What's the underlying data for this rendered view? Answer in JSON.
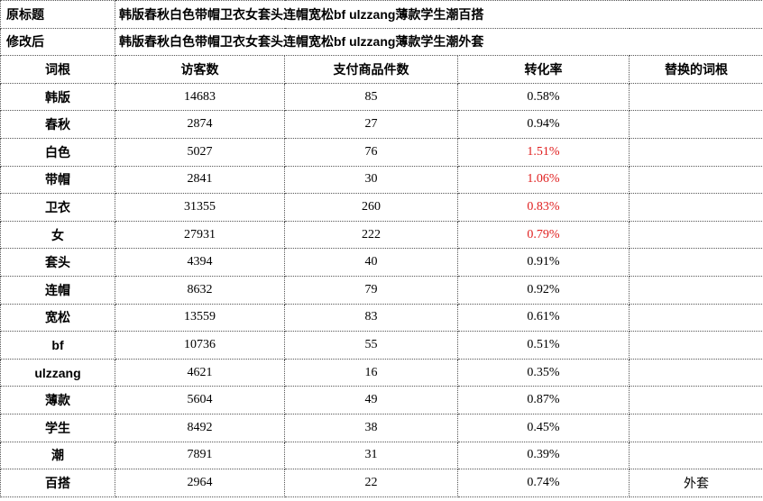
{
  "header": {
    "original_title_label": "原标题",
    "original_title_value": "韩版春秋白色带帽卫衣女套头连帽宽松bf ulzzang薄款学生潮百搭",
    "modified_title_label": "修改后",
    "modified_title_value": "韩版春秋白色带帽卫衣女套头连帽宽松bf ulzzang薄款学生潮外套"
  },
  "columns": {
    "root": "词根",
    "visitors": "访客数",
    "items_paid": "支付商品件数",
    "conversion": "转化率",
    "replaced_root": "替换的词根"
  },
  "highlight_color": "#e02020",
  "rows": [
    {
      "root": "韩版",
      "visitors": "14683",
      "items_paid": "85",
      "conversion": "0.58%",
      "highlight": false,
      "replaced": ""
    },
    {
      "root": "春秋",
      "visitors": "2874",
      "items_paid": "27",
      "conversion": "0.94%",
      "highlight": false,
      "replaced": ""
    },
    {
      "root": "白色",
      "visitors": "5027",
      "items_paid": "76",
      "conversion": "1.51%",
      "highlight": true,
      "replaced": ""
    },
    {
      "root": "带帽",
      "visitors": "2841",
      "items_paid": "30",
      "conversion": "1.06%",
      "highlight": true,
      "replaced": ""
    },
    {
      "root": "卫衣",
      "visitors": "31355",
      "items_paid": "260",
      "conversion": "0.83%",
      "highlight": true,
      "replaced": ""
    },
    {
      "root": "女",
      "visitors": "27931",
      "items_paid": "222",
      "conversion": "0.79%",
      "highlight": true,
      "replaced": ""
    },
    {
      "root": "套头",
      "visitors": "4394",
      "items_paid": "40",
      "conversion": "0.91%",
      "highlight": false,
      "replaced": ""
    },
    {
      "root": "连帽",
      "visitors": "8632",
      "items_paid": "79",
      "conversion": "0.92%",
      "highlight": false,
      "replaced": ""
    },
    {
      "root": "宽松",
      "visitors": "13559",
      "items_paid": "83",
      "conversion": "0.61%",
      "highlight": false,
      "replaced": ""
    },
    {
      "root": "bf",
      "visitors": "10736",
      "items_paid": "55",
      "conversion": "0.51%",
      "highlight": false,
      "replaced": ""
    },
    {
      "root": "ulzzang",
      "visitors": "4621",
      "items_paid": "16",
      "conversion": "0.35%",
      "highlight": false,
      "replaced": ""
    },
    {
      "root": "薄款",
      "visitors": "5604",
      "items_paid": "49",
      "conversion": "0.87%",
      "highlight": false,
      "replaced": ""
    },
    {
      "root": "学生",
      "visitors": "8492",
      "items_paid": "38",
      "conversion": "0.45%",
      "highlight": false,
      "replaced": ""
    },
    {
      "root": "潮",
      "visitors": "7891",
      "items_paid": "31",
      "conversion": "0.39%",
      "highlight": false,
      "replaced": ""
    },
    {
      "root": "百搭",
      "visitors": "2964",
      "items_paid": "22",
      "conversion": "0.74%",
      "highlight": false,
      "replaced": "外套"
    }
  ]
}
